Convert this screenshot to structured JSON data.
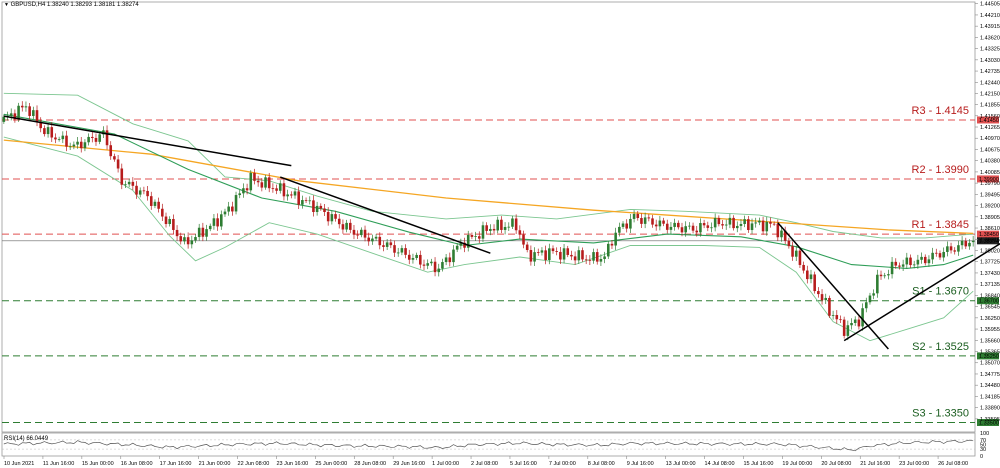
{
  "header": {
    "title": "GBPUSD,H4  1.38240 1.38293 1.38181 1.38274"
  },
  "rsi_header": {
    "title": "RSI(14) 66.0449"
  },
  "colors": {
    "bull": "#2e7d32",
    "bear": "#b71c1c",
    "resistance": "#e05050",
    "support": "#2e7d32",
    "ma_fast": "#2f9e58",
    "ma_slow": "#f5a623",
    "bands": "#7cc690",
    "trend": "#000000",
    "current": "#666666"
  },
  "chart_data": {
    "type": "candlestick",
    "symbol": "GBPUSD",
    "timeframe": "H4",
    "ohlc_header": {
      "open": 1.3824,
      "high": 1.38293,
      "low": 1.38181,
      "close": 1.38274
    },
    "current_price": 1.38274,
    "price_axis": {
      "range": [
        1.3325,
        1.4455
      ],
      "ticks": [
        "1.44505",
        "1.44210",
        "1.43915",
        "1.43620",
        "1.43325",
        "1.43030",
        "1.42735",
        "1.42440",
        "1.42150",
        "1.41855",
        "1.41560",
        "1.41265",
        "1.40970",
        "1.40675",
        "1.40380",
        "1.40085",
        "1.39790",
        "1.39495",
        "1.39200",
        "1.38905",
        "1.38610",
        "1.38315",
        "1.38020",
        "1.37725",
        "1.37430",
        "1.37135",
        "1.36840",
        "1.36545",
        "1.36250",
        "1.35955",
        "1.35660",
        "1.35365",
        "1.35070",
        "1.34775",
        "1.34480",
        "1.34185",
        "1.33890",
        "1.33595"
      ]
    },
    "time_axis": [
      "10 Jun 2021",
      "11 Jun 16:00",
      "15 Jun 00:00",
      "16 Jun 08:00",
      "17 Jun 16:00",
      "21 Jun 00:00",
      "22 Jun 08:00",
      "23 Jun 16:00",
      "25 Jun 00:00",
      "28 Jun 08:00",
      "29 Jun 16:00",
      "1 Jul 00:00",
      "2 Jul 08:00",
      "5 Jul 16:00",
      "7 Jul 00:00",
      "8 Jul 08:00",
      "9 Jul 16:00",
      "13 Jul 00:00",
      "14 Jul 08:00",
      "15 Jul 16:00",
      "19 Jul 00:00",
      "20 Jul 08:00",
      "21 Jul 16:00",
      "23 Jul 00:00",
      "26 Jul 08:00"
    ],
    "levels": [
      {
        "label": "R3 - 1.4145",
        "value": 1.4145,
        "tag": "1.41450",
        "kind": "resistance"
      },
      {
        "label": "R2 - 1.3990",
        "value": 1.399,
        "tag": "1.39900",
        "kind": "resistance"
      },
      {
        "label": "R1 - 1.3845",
        "value": 1.3845,
        "tag": "1.38450",
        "kind": "resistance"
      },
      {
        "label": "S1 - 1.3670",
        "value": 1.367,
        "tag": "1.36700",
        "kind": "support"
      },
      {
        "label": "S2 - 1.3525",
        "value": 1.3525,
        "tag": "1.35250",
        "kind": "support"
      },
      {
        "label": "S3 - 1.3350",
        "value": 1.335,
        "tag": "1.33500",
        "kind": "support"
      }
    ],
    "anchors": [
      [
        0,
        1.414
      ],
      [
        7,
        1.4182
      ],
      [
        12,
        1.4115
      ],
      [
        20,
        1.4075
      ],
      [
        28,
        1.4108
      ],
      [
        33,
        1.3985
      ],
      [
        40,
        1.3945
      ],
      [
        50,
        1.382
      ],
      [
        57,
        1.3865
      ],
      [
        62,
        1.391
      ],
      [
        68,
        1.399
      ],
      [
        75,
        1.3965
      ],
      [
        85,
        1.392
      ],
      [
        95,
        1.3855
      ],
      [
        105,
        1.3815
      ],
      [
        115,
        1.3768
      ],
      [
        119,
        1.3755
      ],
      [
        125,
        1.382
      ],
      [
        133,
        1.3862
      ],
      [
        140,
        1.387
      ],
      [
        143,
        1.379
      ],
      [
        150,
        1.3798
      ],
      [
        160,
        1.378
      ],
      [
        164,
        1.3785
      ],
      [
        167,
        1.385
      ],
      [
        172,
        1.389
      ],
      [
        180,
        1.3868
      ],
      [
        188,
        1.3858
      ],
      [
        195,
        1.3875
      ],
      [
        200,
        1.387
      ],
      [
        205,
        1.3872
      ],
      [
        210,
        1.3868
      ],
      [
        215,
        1.38
      ],
      [
        220,
        1.372
      ],
      [
        225,
        1.3645
      ],
      [
        229,
        1.3595
      ],
      [
        233,
        1.362
      ],
      [
        238,
        1.3725
      ],
      [
        243,
        1.3765
      ],
      [
        250,
        1.3775
      ],
      [
        255,
        1.3795
      ],
      [
        260,
        1.3812
      ],
      [
        263,
        1.3827
      ]
    ],
    "ma_slow": [
      [
        0,
        1.4092
      ],
      [
        40,
        1.4055
      ],
      [
        80,
        1.3985
      ],
      [
        120,
        1.394
      ],
      [
        160,
        1.3908
      ],
      [
        200,
        1.3882
      ],
      [
        240,
        1.3856
      ],
      [
        263,
        1.3847
      ]
    ],
    "ma_fast": [
      [
        0,
        1.416
      ],
      [
        30,
        1.4108
      ],
      [
        50,
        1.4015
      ],
      [
        70,
        1.394
      ],
      [
        90,
        1.3905
      ],
      [
        110,
        1.385
      ],
      [
        125,
        1.3815
      ],
      [
        140,
        1.3832
      ],
      [
        160,
        1.3822
      ],
      [
        180,
        1.3845
      ],
      [
        200,
        1.3838
      ],
      [
        215,
        1.3812
      ],
      [
        230,
        1.3765
      ],
      [
        245,
        1.3755
      ],
      [
        255,
        1.3765
      ],
      [
        263,
        1.379
      ]
    ],
    "bb_upper": [
      [
        0,
        1.4215
      ],
      [
        20,
        1.421
      ],
      [
        35,
        1.4135
      ],
      [
        50,
        1.409
      ],
      [
        60,
        1.3995
      ],
      [
        72,
        1.3985
      ],
      [
        85,
        1.3945
      ],
      [
        100,
        1.3905
      ],
      [
        120,
        1.3885
      ],
      [
        135,
        1.3895
      ],
      [
        150,
        1.3885
      ],
      [
        170,
        1.391
      ],
      [
        185,
        1.3905
      ],
      [
        205,
        1.3895
      ],
      [
        215,
        1.3875
      ],
      [
        225,
        1.3852
      ],
      [
        238,
        1.3835
      ],
      [
        250,
        1.3835
      ],
      [
        263,
        1.3845
      ]
    ],
    "bb_lower": [
      [
        0,
        1.41
      ],
      [
        20,
        1.405
      ],
      [
        35,
        1.396
      ],
      [
        45,
        1.384
      ],
      [
        52,
        1.3775
      ],
      [
        60,
        1.381
      ],
      [
        72,
        1.3875
      ],
      [
        85,
        1.3845
      ],
      [
        100,
        1.3795
      ],
      [
        115,
        1.3745
      ],
      [
        125,
        1.3765
      ],
      [
        140,
        1.3785
      ],
      [
        155,
        1.3765
      ],
      [
        170,
        1.3815
      ],
      [
        190,
        1.3815
      ],
      [
        205,
        1.381
      ],
      [
        215,
        1.3745
      ],
      [
        225,
        1.3615
      ],
      [
        235,
        1.3565
      ],
      [
        245,
        1.3595
      ],
      [
        255,
        1.3625
      ],
      [
        263,
        1.3695
      ]
    ],
    "trendlines": [
      [
        [
          0,
          1.4155
        ],
        [
          78,
          1.4025
        ]
      ],
      [
        [
          75,
          1.3995
        ],
        [
          132,
          1.3795
        ]
      ],
      [
        [
          210,
          1.3875
        ],
        [
          240,
          1.3543
        ]
      ],
      [
        [
          228,
          1.3565
        ],
        [
          275,
          1.3848
        ]
      ]
    ],
    "rsi": {
      "value": 66.0449,
      "axis": {
        "range": [
          0,
          100
        ],
        "ticks": [
          "100",
          "70",
          "50",
          "30",
          "0"
        ]
      },
      "values": [
        [
          0,
          52
        ],
        [
          20,
          60
        ],
        [
          35,
          48
        ],
        [
          45,
          38
        ],
        [
          55,
          45
        ],
        [
          65,
          52
        ],
        [
          75,
          55
        ],
        [
          85,
          48
        ],
        [
          95,
          44
        ],
        [
          110,
          41
        ],
        [
          118,
          36
        ],
        [
          128,
          50
        ],
        [
          140,
          56
        ],
        [
          150,
          50
        ],
        [
          162,
          47
        ],
        [
          170,
          55
        ],
        [
          185,
          54
        ],
        [
          200,
          52
        ],
        [
          210,
          52
        ],
        [
          218,
          42
        ],
        [
          226,
          32
        ],
        [
          230,
          26
        ],
        [
          236,
          46
        ],
        [
          245,
          58
        ],
        [
          255,
          62
        ],
        [
          263,
          66
        ]
      ]
    }
  }
}
